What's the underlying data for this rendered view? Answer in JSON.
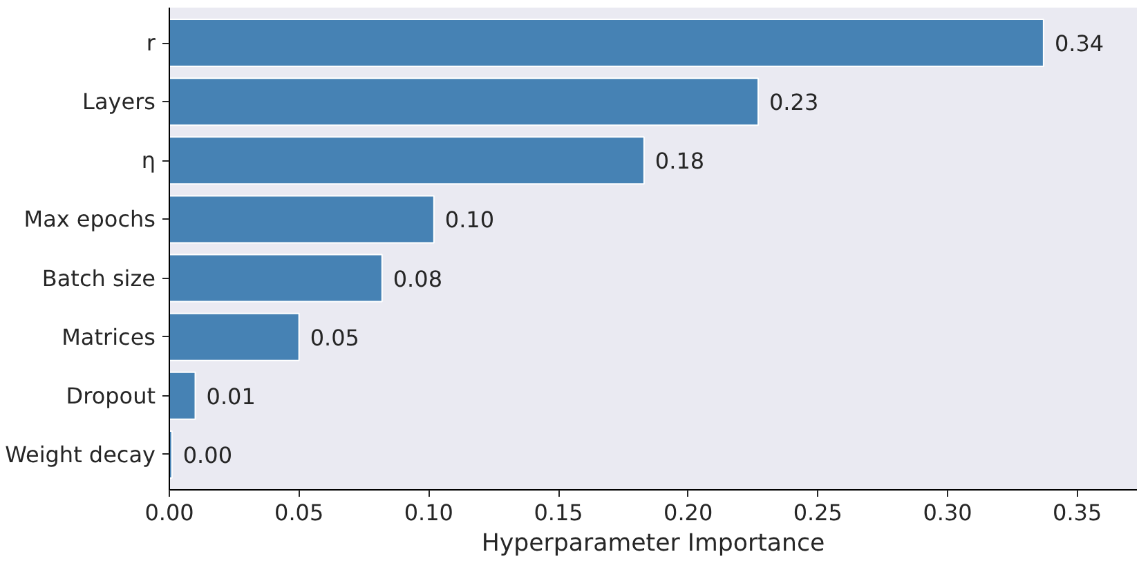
{
  "chart_data": {
    "type": "bar",
    "orientation": "horizontal",
    "xlabel": "Hyperparameter Importance",
    "categories": [
      "r",
      "Layers",
      "η",
      "Max epochs",
      "Batch size",
      "Matrices",
      "Dropout",
      "Weight decay"
    ],
    "values": [
      0.337,
      0.227,
      0.183,
      0.102,
      0.082,
      0.05,
      0.01,
      0.001
    ],
    "value_labels": [
      "0.34",
      "0.23",
      "0.18",
      "0.10",
      "0.08",
      "0.05",
      "0.01",
      "0.00"
    ],
    "color": "#4682b4",
    "xlim": [
      0,
      0.373
    ],
    "xticks": [
      {
        "value": 0,
        "label": "0.00"
      },
      {
        "value": 0.05,
        "label": "0.05"
      },
      {
        "value": 0.1,
        "label": "0.10"
      },
      {
        "value": 0.15,
        "label": "0.15"
      },
      {
        "value": 0.2,
        "label": "0.20"
      },
      {
        "value": 0.25,
        "label": "0.25"
      },
      {
        "value": 0.3,
        "label": "0.30"
      },
      {
        "value": 0.35,
        "label": "0.35"
      }
    ],
    "grid": false
  }
}
